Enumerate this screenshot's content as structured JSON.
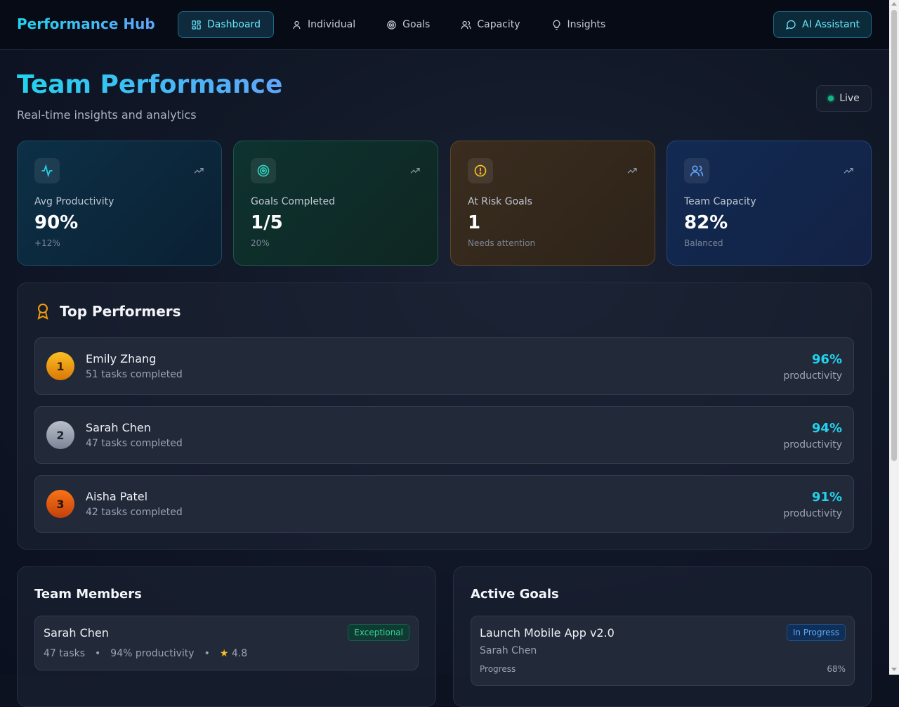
{
  "header": {
    "brand": "Performance Hub",
    "nav": [
      {
        "label": "Dashboard",
        "icon": "grid-icon",
        "active": true
      },
      {
        "label": "Individual",
        "icon": "user-icon",
        "active": false
      },
      {
        "label": "Goals",
        "icon": "target-icon",
        "active": false
      },
      {
        "label": "Capacity",
        "icon": "users-icon",
        "active": false
      },
      {
        "label": "Insights",
        "icon": "lightbulb-icon",
        "active": false
      }
    ],
    "ai_button": "AI Assistant"
  },
  "page": {
    "title": "Team Performance",
    "subtitle": "Real-time insights and analytics",
    "live_label": "Live"
  },
  "stats": [
    {
      "label": "Avg Productivity",
      "value": "90%",
      "sub": "+12%",
      "icon": "activity-icon",
      "accent": "#22d3ee"
    },
    {
      "label": "Goals Completed",
      "value": "1/5",
      "sub": "20%",
      "icon": "target-icon",
      "accent": "#2dd4bf"
    },
    {
      "label": "At Risk Goals",
      "value": "1",
      "sub": "Needs attention",
      "icon": "alert-circle-icon",
      "accent": "#fbbf24"
    },
    {
      "label": "Team Capacity",
      "value": "82%",
      "sub": "Balanced",
      "icon": "users-icon",
      "accent": "#60a5fa"
    }
  ],
  "top_performers": {
    "title": "Top Performers",
    "items": [
      {
        "rank": "1",
        "name": "Emily Zhang",
        "tasks": "51 tasks completed",
        "productivity": "96%",
        "productivity_label": "productivity"
      },
      {
        "rank": "2",
        "name": "Sarah Chen",
        "tasks": "47 tasks completed",
        "productivity": "94%",
        "productivity_label": "productivity"
      },
      {
        "rank": "3",
        "name": "Aisha Patel",
        "tasks": "42 tasks completed",
        "productivity": "91%",
        "productivity_label": "productivity"
      }
    ]
  },
  "team_members": {
    "title": "Team Members",
    "items": [
      {
        "name": "Sarah Chen",
        "badge": "Exceptional",
        "tasks": "47 tasks",
        "productivity": "94% productivity",
        "rating": "4.8",
        "sep": "•"
      }
    ]
  },
  "active_goals": {
    "title": "Active Goals",
    "items": [
      {
        "name": "Launch Mobile App v2.0",
        "status": "In Progress",
        "owner": "Sarah Chen",
        "progress_label": "Progress",
        "progress": "68%"
      }
    ]
  },
  "colors": {
    "accent": "#22d3ee",
    "brand_gradient_start": "#22d3ee",
    "brand_gradient_end": "#60a5fa",
    "live": "#10b981"
  }
}
